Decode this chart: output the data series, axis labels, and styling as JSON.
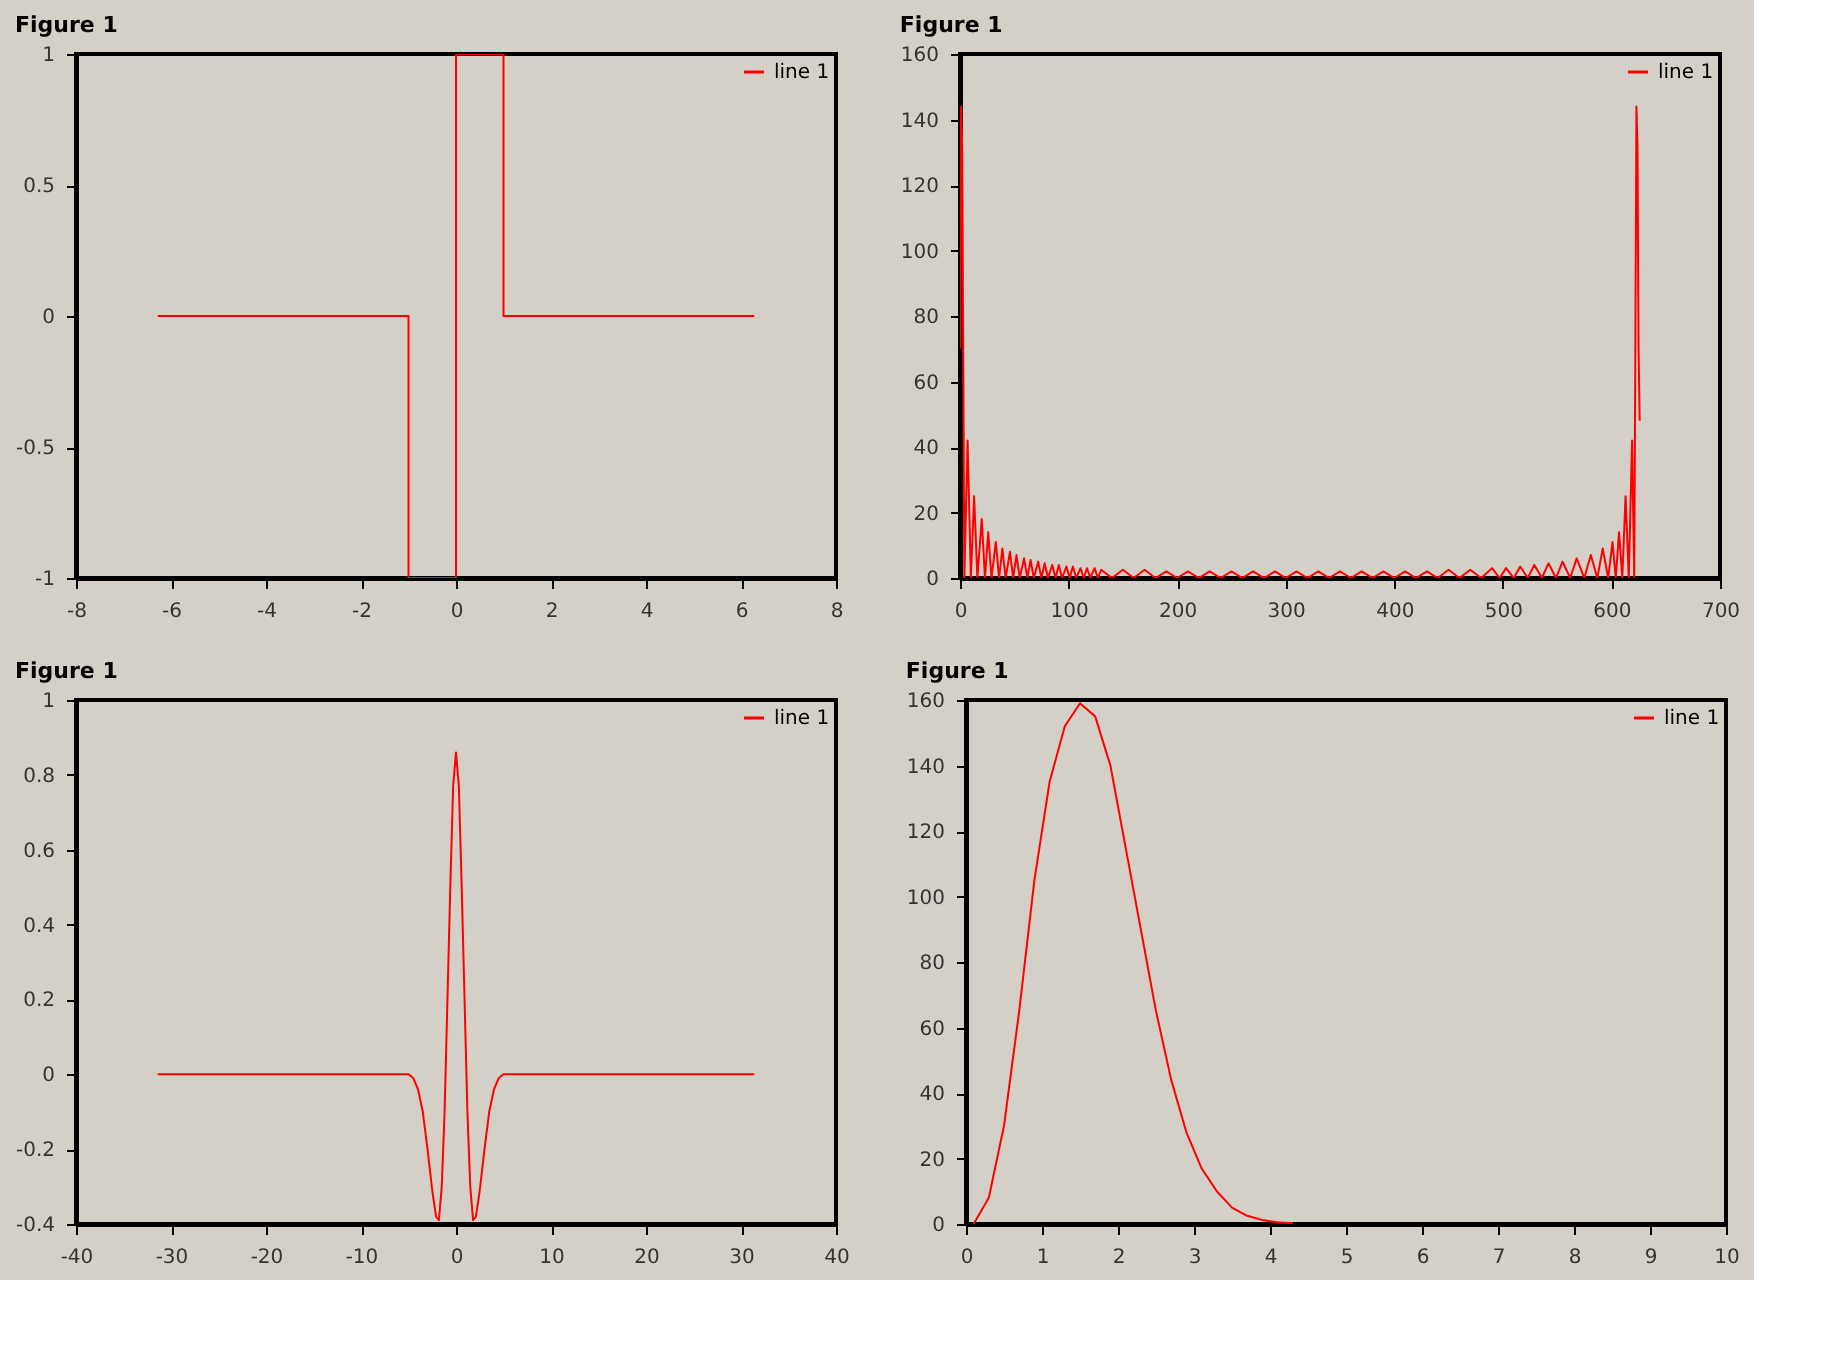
{
  "chart_data": [
    {
      "type": "line",
      "title": "Figure 1",
      "legend": "top right",
      "xlim": [
        -8,
        8
      ],
      "xticks": [
        -8,
        -6,
        -4,
        -2,
        0,
        2,
        4,
        6,
        8
      ],
      "ylim": [
        -1,
        1
      ],
      "yticks": [
        -1,
        -0.5,
        0,
        0.5,
        1
      ],
      "x": [
        -6.28,
        -1,
        -1,
        0,
        0,
        1,
        1,
        6.28
      ],
      "series": [
        {
          "name": "line 1",
          "color": "#ff0000",
          "values": [
            0,
            0,
            -1,
            -1,
            1,
            1,
            0,
            0
          ]
        }
      ]
    },
    {
      "type": "line",
      "title": "Figure 1",
      "legend": "top right",
      "xlim": [
        0,
        700
      ],
      "xticks": [
        0,
        100,
        200,
        300,
        400,
        500,
        600,
        700
      ],
      "ylim": [
        0,
        160
      ],
      "yticks": [
        0,
        20,
        40,
        60,
        80,
        100,
        120,
        140,
        160
      ],
      "x": [
        0,
        1,
        2,
        3,
        4,
        7,
        10,
        13,
        16,
        20,
        23,
        26,
        29,
        33,
        36,
        39,
        42,
        46,
        49,
        52,
        55,
        59,
        62,
        65,
        68,
        72,
        75,
        78,
        81,
        85,
        88,
        91,
        94,
        98,
        101,
        104,
        107,
        111,
        114,
        117,
        120,
        124,
        127,
        130,
        140,
        150,
        160,
        170,
        180,
        190,
        200,
        210,
        220,
        230,
        240,
        250,
        260,
        270,
        280,
        290,
        300,
        310,
        320,
        330,
        340,
        350,
        360,
        370,
        380,
        390,
        400,
        410,
        420,
        430,
        440,
        450,
        460,
        470,
        480,
        490,
        497,
        503,
        510,
        516,
        523,
        529,
        536,
        542,
        549,
        555,
        562,
        568,
        575,
        581,
        587,
        592,
        597,
        601,
        604,
        607,
        610,
        613,
        616,
        619,
        621,
        622,
        623,
        624,
        625,
        626
      ],
      "series": [
        {
          "name": "line 1",
          "color": "#ff0000",
          "values": [
            70,
            144,
            132,
            68,
            0,
            42,
            0,
            25,
            0,
            18,
            0,
            14,
            0,
            11,
            0,
            9,
            0,
            8,
            0,
            7,
            0,
            6,
            0,
            5.5,
            0,
            5,
            0,
            4.5,
            0,
            4,
            0,
            4,
            0,
            3.5,
            0,
            3.5,
            0,
            3,
            0,
            3,
            0,
            3,
            0,
            2.5,
            0,
            2.5,
            0,
            2.5,
            0,
            2,
            0,
            2,
            0,
            2,
            0,
            2,
            0,
            2,
            0,
            2,
            0,
            2,
            0,
            2,
            0,
            2,
            0,
            2,
            0,
            2,
            0,
            2,
            0,
            2,
            0,
            2.5,
            0,
            2.5,
            0,
            3,
            0,
            3,
            0,
            3.5,
            0,
            4,
            0,
            4.5,
            0,
            5,
            0,
            6,
            0,
            7,
            0,
            9,
            0,
            11,
            0,
            14,
            0,
            25,
            0,
            42,
            0,
            68,
            144,
            132,
            70,
            48
          ]
        }
      ]
    },
    {
      "type": "line",
      "title": "Figure 1",
      "legend": "top right",
      "xlim": [
        -40,
        40
      ],
      "xticks": [
        -40,
        -30,
        -20,
        -10,
        0,
        10,
        20,
        30,
        40
      ],
      "ylim": [
        -0.4,
        1
      ],
      "yticks": [
        -0.4,
        -0.2,
        0,
        0.2,
        0.4,
        0.6,
        0.8,
        1
      ],
      "x": [
        -31.4,
        -5,
        -4.5,
        -4,
        -3.5,
        -3,
        -2.5,
        -2.1,
        -1.8,
        -1.5,
        -1.2,
        -0.9,
        -0.6,
        -0.3,
        0,
        0.3,
        0.6,
        0.9,
        1.2,
        1.5,
        1.8,
        2.1,
        2.5,
        3,
        3.5,
        4,
        4.5,
        5,
        31.4
      ],
      "series": [
        {
          "name": "line 1",
          "color": "#ff0000",
          "values": [
            0,
            0,
            -0.01,
            -0.04,
            -0.1,
            -0.2,
            -0.31,
            -0.38,
            -0.39,
            -0.3,
            -0.1,
            0.2,
            0.5,
            0.77,
            0.86,
            0.77,
            0.5,
            0.2,
            -0.1,
            -0.3,
            -0.39,
            -0.38,
            -0.31,
            -0.2,
            -0.1,
            -0.04,
            -0.01,
            0,
            0
          ]
        }
      ]
    },
    {
      "type": "line",
      "title": "Figure 1",
      "legend": "top right",
      "xlim": [
        0,
        10
      ],
      "xticks": [
        0,
        1,
        2,
        3,
        4,
        5,
        6,
        7,
        8,
        9,
        10
      ],
      "ylim": [
        0,
        160
      ],
      "yticks": [
        0,
        20,
        40,
        60,
        80,
        100,
        120,
        140,
        160
      ],
      "x": [
        0.1,
        0.3,
        0.5,
        0.7,
        0.9,
        1.1,
        1.3,
        1.5,
        1.7,
        1.9,
        2.1,
        2.3,
        2.5,
        2.7,
        2.9,
        3.1,
        3.3,
        3.5,
        3.7,
        3.9,
        4.1,
        4.3
      ],
      "series": [
        {
          "name": "line 1",
          "color": "#ff0000",
          "values": [
            0,
            8,
            30,
            65,
            105,
            135,
            152,
            159,
            155,
            140,
            115,
            90,
            65,
            44,
            28,
            17,
            10,
            5,
            2.5,
            1.2,
            0.5,
            0.2
          ]
        }
      ]
    }
  ]
}
